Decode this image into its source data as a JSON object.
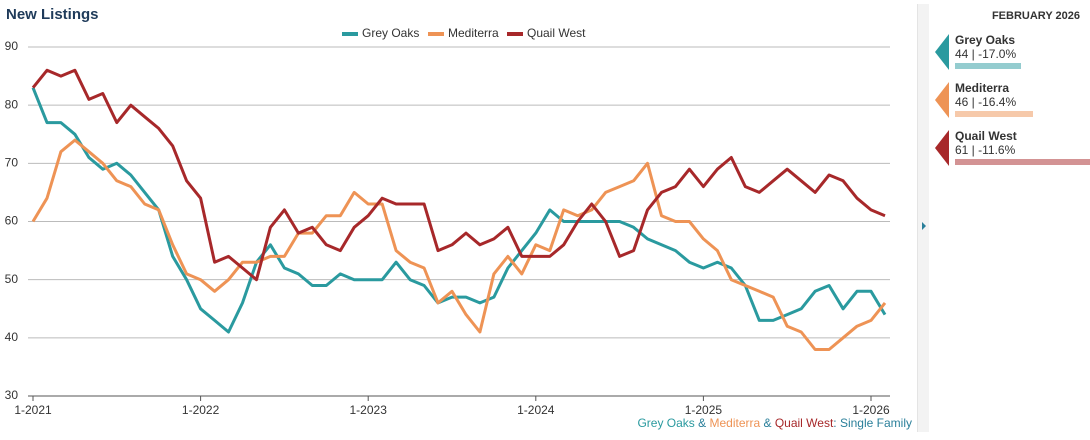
{
  "chart_data": {
    "type": "line",
    "title": "New Listings",
    "categories": [
      "1-2021",
      null,
      null,
      null,
      null,
      null,
      null,
      null,
      null,
      null,
      null,
      null,
      "1-2022",
      null,
      null,
      null,
      null,
      null,
      null,
      null,
      null,
      null,
      null,
      null,
      "1-2023",
      null,
      null,
      null,
      null,
      null,
      null,
      null,
      null,
      null,
      null,
      null,
      "1-2024",
      null,
      null,
      null,
      null,
      null,
      null,
      null,
      null,
      null,
      null,
      null,
      "1-2025",
      null,
      null,
      null,
      null,
      null,
      null,
      null,
      null,
      null,
      null,
      null,
      "1-2026",
      null
    ],
    "series": [
      {
        "name": "Grey Oaks",
        "color": "#2a9a9f",
        "values": [
          83,
          77,
          77,
          75,
          71,
          69,
          70,
          68,
          65,
          62,
          54,
          50,
          45,
          43,
          41,
          46,
          53,
          56,
          52,
          51,
          49,
          49,
          51,
          50,
          50,
          50,
          53,
          50,
          49,
          46,
          47,
          47,
          46,
          47,
          52,
          55,
          58,
          62,
          60,
          60,
          60,
          60,
          60,
          59,
          57,
          56,
          55,
          53,
          52,
          53,
          52,
          49,
          43,
          43,
          44,
          45,
          48,
          49,
          45,
          48,
          48,
          44
        ]
      },
      {
        "name": "Mediterra",
        "color": "#ee9355",
        "values": [
          60,
          64,
          72,
          74,
          72,
          70,
          67,
          66,
          63,
          62,
          56,
          51,
          50,
          48,
          50,
          53,
          53,
          54,
          54,
          58,
          58,
          61,
          61,
          65,
          63,
          63,
          55,
          53,
          52,
          46,
          48,
          44,
          41,
          51,
          54,
          51,
          56,
          55,
          62,
          61,
          62,
          65,
          66,
          67,
          70,
          61,
          60,
          60,
          57,
          55,
          50,
          49,
          48,
          47,
          42,
          41,
          38,
          38,
          40,
          42,
          43,
          46
        ]
      },
      {
        "name": "Quail West",
        "color": "#a7282a",
        "values": [
          83,
          86,
          85,
          86,
          81,
          82,
          77,
          80,
          78,
          76,
          73,
          67,
          64,
          53,
          54,
          52,
          50,
          59,
          62,
          58,
          59,
          56,
          55,
          59,
          61,
          64,
          63,
          63,
          63,
          55,
          56,
          58,
          56,
          57,
          59,
          54,
          54,
          54,
          56,
          60,
          63,
          60,
          54,
          55,
          62,
          65,
          66,
          69,
          66,
          69,
          71,
          66,
          65,
          67,
          69,
          67,
          65,
          68,
          67,
          64,
          62,
          61
        ]
      }
    ],
    "ylim": [
      30,
      90
    ],
    "yticks": [
      30,
      40,
      50,
      60,
      70,
      80,
      90
    ],
    "grid": true,
    "legend": "top",
    "footnote": {
      "joiner": " & ",
      "suffix": ": Single Family"
    }
  },
  "sidebar": {
    "date": "FEBRUARY 2026",
    "items": [
      {
        "summary": "44 | -17.0%"
      },
      {
        "summary": "46 | -16.4%"
      },
      {
        "summary": "61 | -11.6%"
      }
    ]
  }
}
